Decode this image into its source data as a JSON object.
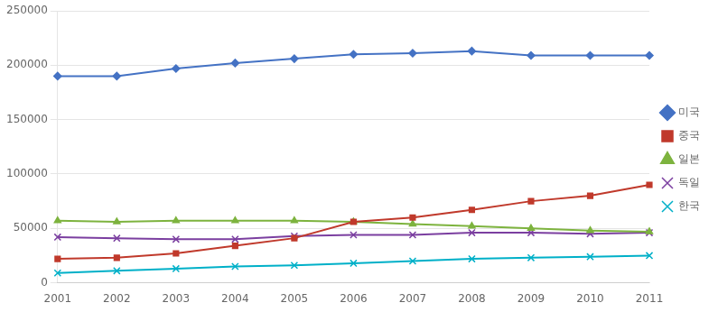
{
  "chart_data": {
    "type": "line",
    "categories": [
      "2001",
      "2002",
      "2003",
      "2004",
      "2005",
      "2006",
      "2007",
      "2008",
      "2009",
      "2010",
      "2011"
    ],
    "series": [
      {
        "name": "미국",
        "color": "#4472C4",
        "marker": "diamond",
        "values": [
          190000,
          190000,
          197000,
          202000,
          206000,
          210000,
          211000,
          213000,
          209000,
          209000,
          209000
        ]
      },
      {
        "name": "중국",
        "color": "#C0392B",
        "marker": "square",
        "values": [
          22000,
          23000,
          27000,
          34000,
          41000,
          56000,
          60000,
          67000,
          75000,
          80000,
          90000
        ]
      },
      {
        "name": "일본",
        "color": "#7DB33E",
        "marker": "triangle",
        "values": [
          57000,
          56000,
          57000,
          57000,
          57000,
          56000,
          54000,
          52000,
          50000,
          48000,
          47000
        ]
      },
      {
        "name": "독일",
        "color": "#7B3FA0",
        "marker": "x",
        "values": [
          42000,
          41000,
          40000,
          40000,
          43000,
          44000,
          44000,
          46000,
          46000,
          45000,
          46000
        ]
      },
      {
        "name": "한국",
        "color": "#00B0C8",
        "marker": "x",
        "values": [
          9000,
          11000,
          13000,
          15000,
          16000,
          18000,
          20000,
          22000,
          23000,
          24000,
          25000
        ]
      }
    ],
    "ylim": [
      0,
      250000
    ],
    "yticks": [
      0,
      50000,
      100000,
      150000,
      200000,
      250000
    ],
    "grid": "y",
    "legend": "right"
  }
}
